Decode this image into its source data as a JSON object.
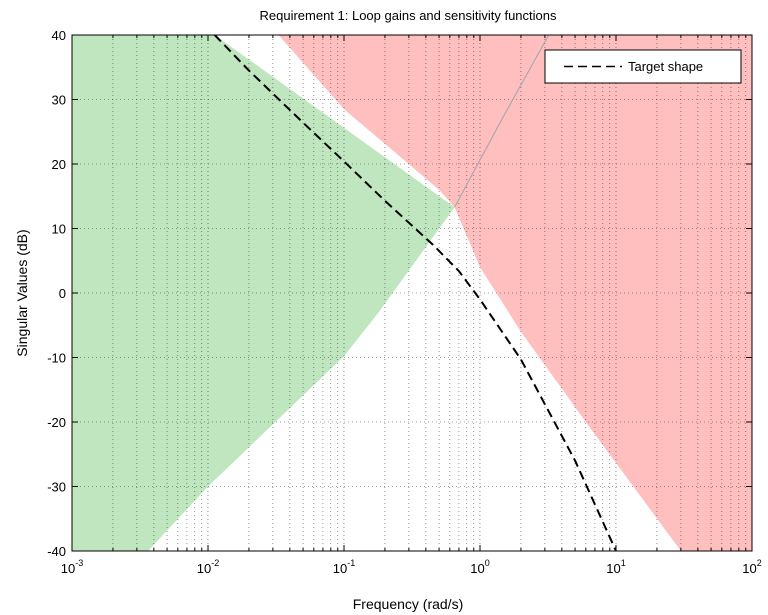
{
  "chart_data": {
    "type": "line",
    "title": "Requirement 1: Loop gains and sensitivity functions",
    "xlabel": "Frequency (rad/s)",
    "ylabel": "Singular Values (dB)",
    "xscale": "log",
    "xlim": [
      0.001,
      100
    ],
    "ylim": [
      -40,
      40
    ],
    "x_ticks": [
      {
        "base": "10",
        "exp": "-3",
        "value": 0.001
      },
      {
        "base": "10",
        "exp": "-2",
        "value": 0.01
      },
      {
        "base": "10",
        "exp": "-1",
        "value": 0.1
      },
      {
        "base": "10",
        "exp": "0",
        "value": 1
      },
      {
        "base": "10",
        "exp": "1",
        "value": 10
      },
      {
        "base": "10",
        "exp": "2",
        "value": 100
      }
    ],
    "y_ticks": [
      "40",
      "30",
      "20",
      "10",
      "0",
      "-10",
      "-20",
      "-30",
      "-40"
    ],
    "grid": true,
    "legend": {
      "position": "top-right",
      "entries": [
        "Target shape"
      ]
    },
    "series": [
      {
        "name": "Target shape",
        "style": "dashed",
        "color": "#000000",
        "x": [
          0.0112,
          0.02,
          0.05,
          0.1,
          0.2,
          0.45,
          0.7,
          1.0,
          2.0,
          5.0,
          10.0
        ],
        "y": [
          40,
          34.5,
          26.4,
          20.4,
          14.3,
          7.5,
          3.4,
          -1.0,
          -10.3,
          -26.0,
          -40
        ]
      }
    ],
    "regions": [
      {
        "label": "green",
        "color": "#bfe6be",
        "boundary": [
          {
            "x": 0.001,
            "y": 40
          },
          {
            "x": 0.0112,
            "y": 40
          },
          {
            "x": 0.65,
            "y": 13.3
          },
          {
            "x": 0.18,
            "y": -3
          },
          {
            "x": 0.1,
            "y": -9.8
          },
          {
            "x": 0.01,
            "y": -30
          },
          {
            "x": 0.00362,
            "y": -40
          },
          {
            "x": 0.001,
            "y": -40
          }
        ]
      },
      {
        "label": "red",
        "color": "#ffbfbf",
        "boundary": [
          {
            "x": 0.033,
            "y": 40
          },
          {
            "x": 100,
            "y": 40
          },
          {
            "x": 100,
            "y": -40
          },
          {
            "x": 30,
            "y": -40
          },
          {
            "x": 6,
            "y": -20
          },
          {
            "x": 2,
            "y": -6
          },
          {
            "x": 1,
            "y": 4
          },
          {
            "x": 0.65,
            "y": 13.3
          },
          {
            "x": 0.5,
            "y": 16
          },
          {
            "x": 0.1,
            "y": 28.5
          }
        ]
      }
    ],
    "thin_curve": {
      "color": "#aaaaaa",
      "x": [
        0.65,
        1.5,
        3.2
      ],
      "y": [
        13.3,
        27.5,
        40
      ]
    }
  }
}
